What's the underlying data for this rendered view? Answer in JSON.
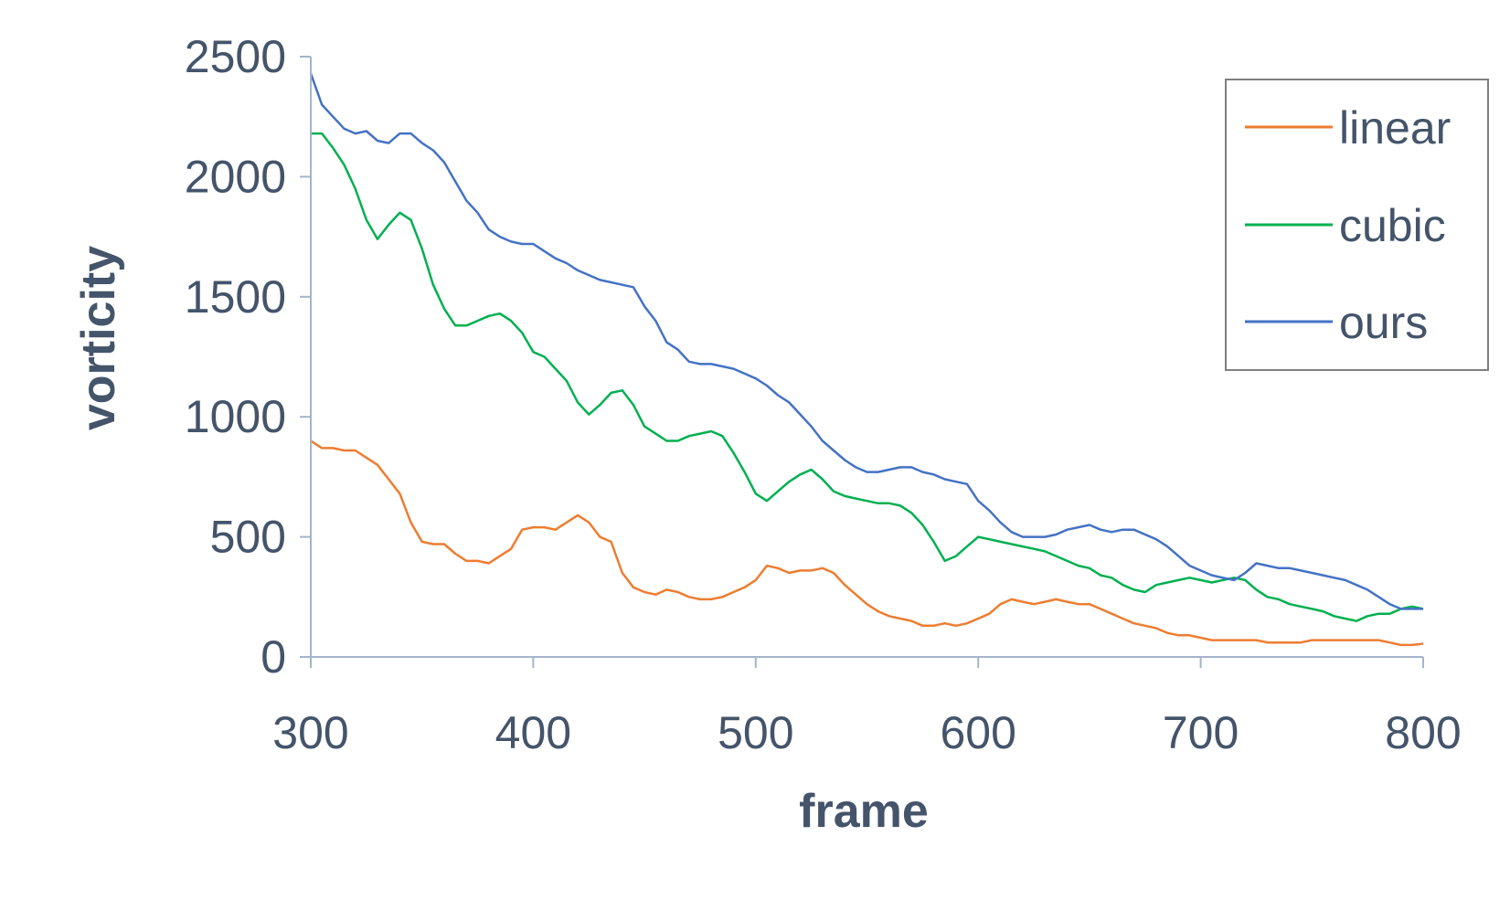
{
  "chart_data": {
    "type": "line",
    "title": "",
    "xlabel": "frame",
    "ylabel": "vorticity",
    "xlim": [
      300,
      800
    ],
    "ylim": [
      0,
      2500
    ],
    "x_ticks": [
      "300",
      "400",
      "500",
      "600",
      "700",
      "800"
    ],
    "y_ticks": [
      "0",
      "500",
      "1000",
      "1500",
      "2000",
      "2500"
    ],
    "grid": false,
    "legend": {
      "position": "top-right",
      "boxed": true
    },
    "series": [
      {
        "name": "linear",
        "color": "#ed7d31",
        "points": [
          [
            300,
            900
          ],
          [
            305,
            870
          ],
          [
            310,
            870
          ],
          [
            315,
            860
          ],
          [
            320,
            860
          ],
          [
            325,
            830
          ],
          [
            330,
            800
          ],
          [
            335,
            740
          ],
          [
            340,
            680
          ],
          [
            345,
            560
          ],
          [
            350,
            480
          ],
          [
            355,
            470
          ],
          [
            360,
            470
          ],
          [
            365,
            430
          ],
          [
            370,
            400
          ],
          [
            375,
            400
          ],
          [
            380,
            390
          ],
          [
            385,
            420
          ],
          [
            390,
            450
          ],
          [
            395,
            530
          ],
          [
            400,
            540
          ],
          [
            405,
            540
          ],
          [
            410,
            530
          ],
          [
            415,
            560
          ],
          [
            420,
            590
          ],
          [
            425,
            560
          ],
          [
            430,
            500
          ],
          [
            435,
            480
          ],
          [
            440,
            350
          ],
          [
            445,
            290
          ],
          [
            450,
            270
          ],
          [
            455,
            260
          ],
          [
            460,
            280
          ],
          [
            465,
            270
          ],
          [
            470,
            250
          ],
          [
            475,
            240
          ],
          [
            480,
            240
          ],
          [
            485,
            250
          ],
          [
            490,
            270
          ],
          [
            495,
            290
          ],
          [
            500,
            320
          ],
          [
            505,
            380
          ],
          [
            510,
            370
          ],
          [
            515,
            350
          ],
          [
            520,
            360
          ],
          [
            525,
            360
          ],
          [
            530,
            370
          ],
          [
            535,
            350
          ],
          [
            540,
            300
          ],
          [
            545,
            260
          ],
          [
            550,
            220
          ],
          [
            555,
            190
          ],
          [
            560,
            170
          ],
          [
            565,
            160
          ],
          [
            570,
            150
          ],
          [
            575,
            130
          ],
          [
            580,
            130
          ],
          [
            585,
            140
          ],
          [
            590,
            130
          ],
          [
            595,
            140
          ],
          [
            600,
            160
          ],
          [
            605,
            180
          ],
          [
            610,
            220
          ],
          [
            615,
            240
          ],
          [
            620,
            230
          ],
          [
            625,
            220
          ],
          [
            630,
            230
          ],
          [
            635,
            240
          ],
          [
            640,
            230
          ],
          [
            645,
            220
          ],
          [
            650,
            220
          ],
          [
            655,
            200
          ],
          [
            660,
            180
          ],
          [
            665,
            160
          ],
          [
            670,
            140
          ],
          [
            675,
            130
          ],
          [
            680,
            120
          ],
          [
            685,
            100
          ],
          [
            690,
            90
          ],
          [
            695,
            90
          ],
          [
            700,
            80
          ],
          [
            705,
            70
          ],
          [
            710,
            70
          ],
          [
            715,
            70
          ],
          [
            720,
            70
          ],
          [
            725,
            70
          ],
          [
            730,
            60
          ],
          [
            735,
            60
          ],
          [
            740,
            60
          ],
          [
            745,
            60
          ],
          [
            750,
            70
          ],
          [
            755,
            70
          ],
          [
            760,
            70
          ],
          [
            765,
            70
          ],
          [
            770,
            70
          ],
          [
            775,
            70
          ],
          [
            780,
            70
          ],
          [
            785,
            60
          ],
          [
            790,
            50
          ],
          [
            795,
            50
          ],
          [
            800,
            55
          ]
        ]
      },
      {
        "name": "cubic",
        "color": "#00b050",
        "points": [
          [
            300,
            2180
          ],
          [
            305,
            2180
          ],
          [
            310,
            2120
          ],
          [
            315,
            2050
          ],
          [
            320,
            1950
          ],
          [
            325,
            1820
          ],
          [
            330,
            1740
          ],
          [
            335,
            1800
          ],
          [
            340,
            1850
          ],
          [
            345,
            1820
          ],
          [
            350,
            1700
          ],
          [
            355,
            1550
          ],
          [
            360,
            1450
          ],
          [
            365,
            1380
          ],
          [
            370,
            1380
          ],
          [
            375,
            1400
          ],
          [
            380,
            1420
          ],
          [
            385,
            1430
          ],
          [
            390,
            1400
          ],
          [
            395,
            1350
          ],
          [
            400,
            1270
          ],
          [
            405,
            1250
          ],
          [
            410,
            1200
          ],
          [
            415,
            1150
          ],
          [
            420,
            1060
          ],
          [
            425,
            1010
          ],
          [
            430,
            1050
          ],
          [
            435,
            1100
          ],
          [
            440,
            1110
          ],
          [
            445,
            1050
          ],
          [
            450,
            960
          ],
          [
            455,
            930
          ],
          [
            460,
            900
          ],
          [
            465,
            900
          ],
          [
            470,
            920
          ],
          [
            475,
            930
          ],
          [
            480,
            940
          ],
          [
            485,
            920
          ],
          [
            490,
            850
          ],
          [
            495,
            770
          ],
          [
            500,
            680
          ],
          [
            505,
            650
          ],
          [
            510,
            690
          ],
          [
            515,
            730
          ],
          [
            520,
            760
          ],
          [
            525,
            780
          ],
          [
            530,
            740
          ],
          [
            535,
            690
          ],
          [
            540,
            670
          ],
          [
            545,
            660
          ],
          [
            550,
            650
          ],
          [
            555,
            640
          ],
          [
            560,
            640
          ],
          [
            565,
            630
          ],
          [
            570,
            600
          ],
          [
            575,
            550
          ],
          [
            580,
            480
          ],
          [
            585,
            400
          ],
          [
            590,
            420
          ],
          [
            595,
            460
          ],
          [
            600,
            500
          ],
          [
            605,
            490
          ],
          [
            610,
            480
          ],
          [
            615,
            470
          ],
          [
            620,
            460
          ],
          [
            625,
            450
          ],
          [
            630,
            440
          ],
          [
            635,
            420
          ],
          [
            640,
            400
          ],
          [
            645,
            380
          ],
          [
            650,
            370
          ],
          [
            655,
            340
          ],
          [
            660,
            330
          ],
          [
            665,
            300
          ],
          [
            670,
            280
          ],
          [
            675,
            270
          ],
          [
            680,
            300
          ],
          [
            685,
            310
          ],
          [
            690,
            320
          ],
          [
            695,
            330
          ],
          [
            700,
            320
          ],
          [
            705,
            310
          ],
          [
            710,
            320
          ],
          [
            715,
            330
          ],
          [
            720,
            320
          ],
          [
            725,
            280
          ],
          [
            730,
            250
          ],
          [
            735,
            240
          ],
          [
            740,
            220
          ],
          [
            745,
            210
          ],
          [
            750,
            200
          ],
          [
            755,
            190
          ],
          [
            760,
            170
          ],
          [
            765,
            160
          ],
          [
            770,
            150
          ],
          [
            775,
            170
          ],
          [
            780,
            180
          ],
          [
            785,
            180
          ],
          [
            790,
            200
          ],
          [
            795,
            210
          ],
          [
            800,
            200
          ]
        ]
      },
      {
        "name": "ours",
        "color": "#4472c4",
        "points": [
          [
            300,
            2430
          ],
          [
            305,
            2300
          ],
          [
            310,
            2250
          ],
          [
            315,
            2200
          ],
          [
            320,
            2180
          ],
          [
            325,
            2190
          ],
          [
            330,
            2150
          ],
          [
            335,
            2140
          ],
          [
            340,
            2180
          ],
          [
            345,
            2180
          ],
          [
            350,
            2140
          ],
          [
            355,
            2110
          ],
          [
            360,
            2060
          ],
          [
            365,
            1980
          ],
          [
            370,
            1900
          ],
          [
            375,
            1850
          ],
          [
            380,
            1780
          ],
          [
            385,
            1750
          ],
          [
            390,
            1730
          ],
          [
            395,
            1720
          ],
          [
            400,
            1720
          ],
          [
            405,
            1690
          ],
          [
            410,
            1660
          ],
          [
            415,
            1640
          ],
          [
            420,
            1610
          ],
          [
            425,
            1590
          ],
          [
            430,
            1570
          ],
          [
            435,
            1560
          ],
          [
            440,
            1550
          ],
          [
            445,
            1540
          ],
          [
            450,
            1460
          ],
          [
            455,
            1400
          ],
          [
            460,
            1310
          ],
          [
            465,
            1280
          ],
          [
            470,
            1230
          ],
          [
            475,
            1220
          ],
          [
            480,
            1220
          ],
          [
            485,
            1210
          ],
          [
            490,
            1200
          ],
          [
            495,
            1180
          ],
          [
            500,
            1160
          ],
          [
            505,
            1130
          ],
          [
            510,
            1090
          ],
          [
            515,
            1060
          ],
          [
            520,
            1010
          ],
          [
            525,
            960
          ],
          [
            530,
            900
          ],
          [
            535,
            860
          ],
          [
            540,
            820
          ],
          [
            545,
            790
          ],
          [
            550,
            770
          ],
          [
            555,
            770
          ],
          [
            560,
            780
          ],
          [
            565,
            790
          ],
          [
            570,
            790
          ],
          [
            575,
            770
          ],
          [
            580,
            760
          ],
          [
            585,
            740
          ],
          [
            590,
            730
          ],
          [
            595,
            720
          ],
          [
            600,
            650
          ],
          [
            605,
            610
          ],
          [
            610,
            560
          ],
          [
            615,
            520
          ],
          [
            620,
            500
          ],
          [
            625,
            500
          ],
          [
            630,
            500
          ],
          [
            635,
            510
          ],
          [
            640,
            530
          ],
          [
            645,
            540
          ],
          [
            650,
            550
          ],
          [
            655,
            530
          ],
          [
            660,
            520
          ],
          [
            665,
            530
          ],
          [
            670,
            530
          ],
          [
            675,
            510
          ],
          [
            680,
            490
          ],
          [
            685,
            460
          ],
          [
            690,
            420
          ],
          [
            695,
            380
          ],
          [
            700,
            360
          ],
          [
            705,
            340
          ],
          [
            710,
            330
          ],
          [
            715,
            320
          ],
          [
            720,
            350
          ],
          [
            725,
            390
          ],
          [
            730,
            380
          ],
          [
            735,
            370
          ],
          [
            740,
            370
          ],
          [
            745,
            360
          ],
          [
            750,
            350
          ],
          [
            755,
            340
          ],
          [
            760,
            330
          ],
          [
            765,
            320
          ],
          [
            770,
            300
          ],
          [
            775,
            280
          ],
          [
            780,
            250
          ],
          [
            785,
            220
          ],
          [
            790,
            200
          ],
          [
            795,
            200
          ],
          [
            800,
            200
          ]
        ]
      }
    ]
  }
}
